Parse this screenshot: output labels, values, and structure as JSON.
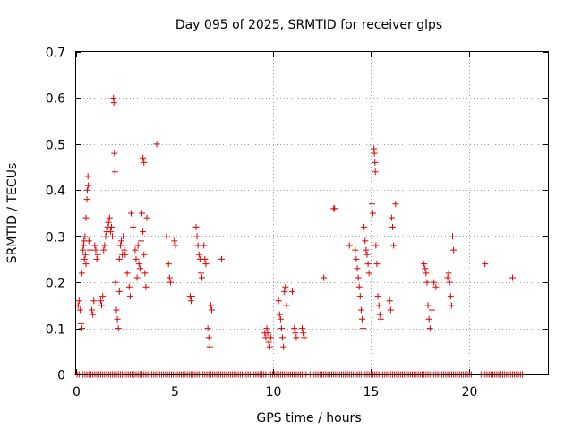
{
  "chart_data": {
    "type": "scatter",
    "title": "Day 095 of 2025, SRMTID for receiver glps",
    "xlabel": "GPS time / hours",
    "ylabel": "SRMTID / TECUs",
    "xlim": [
      0,
      24
    ],
    "ylim": [
      0,
      0.7
    ],
    "x_ticks": [
      0,
      5,
      10,
      15,
      20
    ],
    "x_tick_labels": [
      "0",
      "5",
      "10",
      "15",
      "20"
    ],
    "y_ticks": [
      0,
      0.1,
      0.2,
      0.3,
      0.4,
      0.5,
      0.6,
      0.7
    ],
    "y_tick_labels": [
      "0",
      "0.1",
      "0.2",
      "0.3",
      "0.4",
      "0.5",
      "0.6",
      "0.7"
    ],
    "grid": true,
    "marker": "+",
    "color": "#dd0000",
    "baseline_ranges_hours": [
      [
        0.05,
        9.7
      ],
      [
        9.8,
        11.7
      ],
      [
        11.9,
        13.2
      ],
      [
        13.3,
        20.1
      ],
      [
        20.6,
        22.7
      ]
    ],
    "baseline_step_hours": 0.1,
    "series": [
      {
        "name": "SRMTID",
        "points": [
          [
            0.1,
            0.15
          ],
          [
            0.15,
            0.16
          ],
          [
            0.2,
            0.14
          ],
          [
            0.25,
            0.11
          ],
          [
            0.3,
            0.1
          ],
          [
            0.3,
            0.22
          ],
          [
            0.35,
            0.27
          ],
          [
            0.38,
            0.28
          ],
          [
            0.4,
            0.29
          ],
          [
            0.42,
            0.25
          ],
          [
            0.45,
            0.3
          ],
          [
            0.47,
            0.26
          ],
          [
            0.5,
            0.24
          ],
          [
            0.5,
            0.34
          ],
          [
            0.55,
            0.38
          ],
          [
            0.57,
            0.4
          ],
          [
            0.6,
            0.43
          ],
          [
            0.62,
            0.41
          ],
          [
            0.65,
            0.29
          ],
          [
            0.7,
            0.27
          ],
          [
            0.8,
            0.14
          ],
          [
            0.85,
            0.13
          ],
          [
            0.9,
            0.16
          ],
          [
            0.95,
            0.28
          ],
          [
            1.0,
            0.27
          ],
          [
            1.05,
            0.25
          ],
          [
            1.1,
            0.26
          ],
          [
            1.25,
            0.16
          ],
          [
            1.3,
            0.15
          ],
          [
            1.35,
            0.17
          ],
          [
            1.4,
            0.27
          ],
          [
            1.45,
            0.28
          ],
          [
            1.5,
            0.3
          ],
          [
            1.55,
            0.31
          ],
          [
            1.6,
            0.32
          ],
          [
            1.65,
            0.33
          ],
          [
            1.7,
            0.34
          ],
          [
            1.75,
            0.31
          ],
          [
            1.8,
            0.32
          ],
          [
            1.85,
            0.3
          ],
          [
            1.9,
            0.6
          ],
          [
            1.92,
            0.59
          ],
          [
            1.95,
            0.48
          ],
          [
            1.97,
            0.44
          ],
          [
            2.0,
            0.2
          ],
          [
            2.05,
            0.14
          ],
          [
            2.1,
            0.12
          ],
          [
            2.15,
            0.1
          ],
          [
            2.2,
            0.18
          ],
          [
            2.2,
            0.25
          ],
          [
            2.25,
            0.28
          ],
          [
            2.3,
            0.29
          ],
          [
            2.35,
            0.26
          ],
          [
            2.4,
            0.3
          ],
          [
            2.45,
            0.27
          ],
          [
            2.5,
            0.26
          ],
          [
            2.6,
            0.22
          ],
          [
            2.7,
            0.19
          ],
          [
            2.75,
            0.17
          ],
          [
            2.8,
            0.35
          ],
          [
            2.9,
            0.32
          ],
          [
            3.0,
            0.27
          ],
          [
            3.05,
            0.25
          ],
          [
            3.1,
            0.21
          ],
          [
            3.15,
            0.28
          ],
          [
            3.2,
            0.24
          ],
          [
            3.25,
            0.23
          ],
          [
            3.3,
            0.29
          ],
          [
            3.35,
            0.35
          ],
          [
            3.4,
            0.31
          ],
          [
            3.45,
            0.26
          ],
          [
            3.5,
            0.22
          ],
          [
            3.55,
            0.19
          ],
          [
            3.4,
            0.47
          ],
          [
            3.45,
            0.46
          ],
          [
            3.6,
            0.34
          ],
          [
            4.1,
            0.5
          ],
          [
            4.6,
            0.3
          ],
          [
            4.7,
            0.24
          ],
          [
            4.75,
            0.21
          ],
          [
            4.8,
            0.2
          ],
          [
            5.0,
            0.29
          ],
          [
            5.05,
            0.28
          ],
          [
            5.8,
            0.17
          ],
          [
            5.85,
            0.16
          ],
          [
            5.9,
            0.17
          ],
          [
            6.1,
            0.32
          ],
          [
            6.15,
            0.3
          ],
          [
            6.2,
            0.28
          ],
          [
            6.25,
            0.26
          ],
          [
            6.3,
            0.25
          ],
          [
            6.35,
            0.22
          ],
          [
            6.4,
            0.21
          ],
          [
            6.5,
            0.28
          ],
          [
            6.55,
            0.25
          ],
          [
            6.6,
            0.24
          ],
          [
            6.7,
            0.1
          ],
          [
            6.75,
            0.08
          ],
          [
            6.8,
            0.06
          ],
          [
            6.85,
            0.15
          ],
          [
            6.9,
            0.14
          ],
          [
            7.4,
            0.25
          ],
          [
            9.6,
            0.09
          ],
          [
            9.65,
            0.08
          ],
          [
            9.7,
            0.1
          ],
          [
            9.75,
            0.09
          ],
          [
            9.8,
            0.07
          ],
          [
            9.85,
            0.06
          ],
          [
            9.9,
            0.08
          ],
          [
            10.3,
            0.16
          ],
          [
            10.35,
            0.13
          ],
          [
            10.4,
            0.12
          ],
          [
            10.45,
            0.1
          ],
          [
            10.5,
            0.08
          ],
          [
            10.55,
            0.06
          ],
          [
            10.6,
            0.18
          ],
          [
            10.65,
            0.19
          ],
          [
            10.7,
            0.15
          ],
          [
            11.0,
            0.18
          ],
          [
            11.1,
            0.1
          ],
          [
            11.15,
            0.09
          ],
          [
            11.2,
            0.08
          ],
          [
            11.5,
            0.1
          ],
          [
            11.55,
            0.09
          ],
          [
            11.6,
            0.08
          ],
          [
            12.6,
            0.21
          ],
          [
            13.1,
            0.36
          ],
          [
            13.15,
            0.36
          ],
          [
            13.9,
            0.28
          ],
          [
            14.2,
            0.27
          ],
          [
            14.25,
            0.25
          ],
          [
            14.3,
            0.23
          ],
          [
            14.35,
            0.21
          ],
          [
            14.4,
            0.19
          ],
          [
            14.45,
            0.17
          ],
          [
            14.5,
            0.14
          ],
          [
            14.55,
            0.12
          ],
          [
            14.6,
            0.1
          ],
          [
            14.65,
            0.32
          ],
          [
            14.7,
            0.29
          ],
          [
            14.75,
            0.27
          ],
          [
            14.8,
            0.26
          ],
          [
            14.85,
            0.24
          ],
          [
            14.9,
            0.22
          ],
          [
            15.05,
            0.37
          ],
          [
            15.1,
            0.35
          ],
          [
            15.15,
            0.49
          ],
          [
            15.17,
            0.48
          ],
          [
            15.2,
            0.46
          ],
          [
            15.22,
            0.44
          ],
          [
            15.25,
            0.28
          ],
          [
            15.3,
            0.24
          ],
          [
            15.35,
            0.17
          ],
          [
            15.4,
            0.15
          ],
          [
            15.45,
            0.13
          ],
          [
            15.5,
            0.12
          ],
          [
            15.95,
            0.16
          ],
          [
            16.0,
            0.14
          ],
          [
            16.05,
            0.34
          ],
          [
            16.1,
            0.32
          ],
          [
            16.15,
            0.28
          ],
          [
            16.25,
            0.37
          ],
          [
            17.7,
            0.24
          ],
          [
            17.75,
            0.23
          ],
          [
            17.8,
            0.22
          ],
          [
            17.85,
            0.2
          ],
          [
            17.9,
            0.15
          ],
          [
            17.95,
            0.12
          ],
          [
            18.0,
            0.1
          ],
          [
            18.1,
            0.14
          ],
          [
            18.2,
            0.2
          ],
          [
            18.3,
            0.19
          ],
          [
            18.9,
            0.21
          ],
          [
            18.95,
            0.22
          ],
          [
            19.0,
            0.2
          ],
          [
            19.05,
            0.17
          ],
          [
            19.1,
            0.15
          ],
          [
            19.15,
            0.3
          ],
          [
            19.2,
            0.27
          ],
          [
            20.8,
            0.24
          ],
          [
            22.2,
            0.21
          ]
        ]
      }
    ]
  }
}
